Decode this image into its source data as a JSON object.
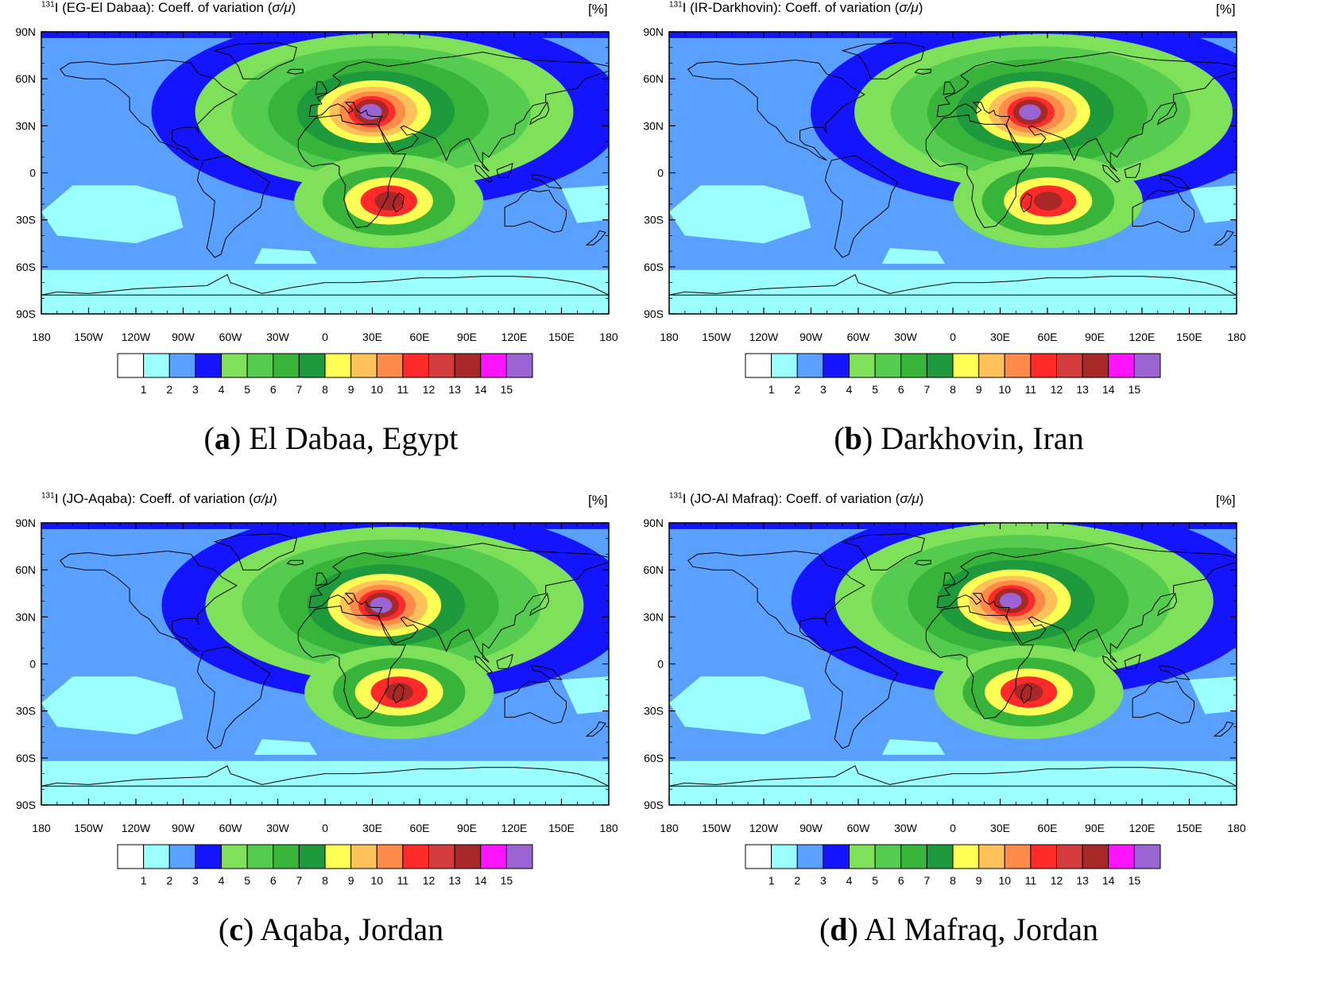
{
  "colorbar": {
    "labels": [
      "1",
      "2",
      "3",
      "4",
      "5",
      "6",
      "7",
      "8",
      "9",
      "10",
      "11",
      "12",
      "13",
      "14",
      "15"
    ],
    "colors": [
      "#ffffff",
      "#9bffff",
      "#5aa0ff",
      "#1414ff",
      "#7fe05a",
      "#55cc4f",
      "#38b43a",
      "#1e9a3c",
      "#ffff55",
      "#ffc25a",
      "#ff8a4a",
      "#ff2a2a",
      "#d23c3c",
      "#a82828",
      "#ff14ff",
      "#9a64d2"
    ]
  },
  "axes": {
    "lat_labels": [
      "90N",
      "60N",
      "30N",
      "0",
      "30S",
      "60S",
      "90S"
    ],
    "lon_labels": [
      "180",
      "150W",
      "120W",
      "90W",
      "60W",
      "30W",
      "0",
      "30E",
      "60E",
      "90E",
      "120E",
      "150E",
      "180"
    ]
  },
  "panels": [
    {
      "id": "a",
      "title_sup": "131",
      "title_main": "I (EG-El Dabaa): Coeff. of variation (",
      "title_sym": "σ/μ",
      "title_end": ")",
      "unit": "[%]",
      "caption_letter": "a",
      "caption_text": "El Dabaa, Egypt",
      "source": {
        "lon": 28.5,
        "lat": 31.0
      }
    },
    {
      "id": "b",
      "title_sup": "131",
      "title_main": "I (IR-Darkhovin): Coeff. of variation (",
      "title_sym": "σ/μ",
      "title_end": ")",
      "unit": "[%]",
      "caption_letter": "b",
      "caption_text": "Darkhovin, Iran",
      "source": {
        "lon": 48.4,
        "lat": 30.7
      }
    },
    {
      "id": "c",
      "title_sup": "131",
      "title_main": "I (JO-Aqaba): Coeff. of variation (",
      "title_sym": "σ/μ",
      "title_end": ")",
      "unit": "[%]",
      "caption_letter": "c",
      "caption_text": "Aqaba, Jordan",
      "source": {
        "lon": 35.0,
        "lat": 29.5
      }
    },
    {
      "id": "d",
      "title_sup": "131",
      "title_main": "I (JO-Al Mafraq): Coeff. of variation (",
      "title_sym": "σ/μ",
      "title_end": ")",
      "unit": "[%]",
      "caption_letter": "d",
      "caption_text": "Al Mafraq, Jordan",
      "source": {
        "lon": 36.2,
        "lat": 32.3
      }
    }
  ]
}
